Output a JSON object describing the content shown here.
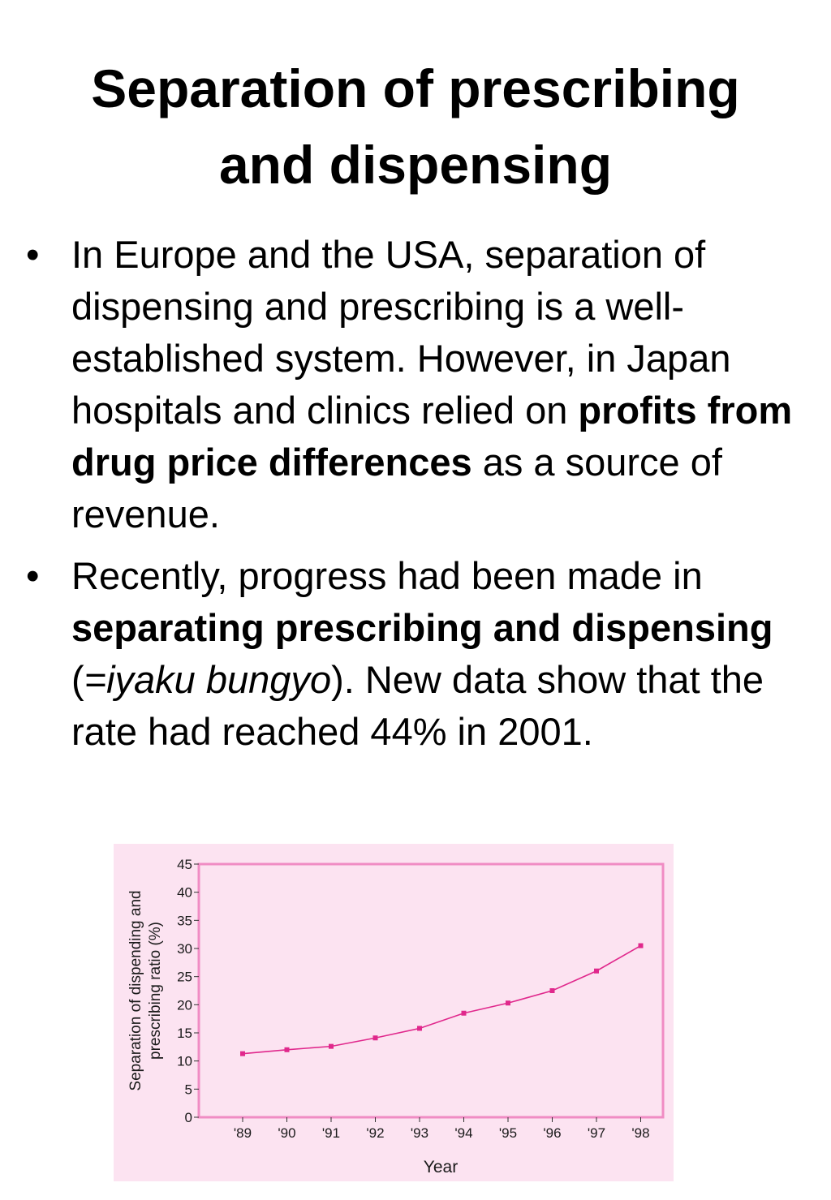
{
  "slide": {
    "title_line1": "Separation of prescribing",
    "title_line2": "and dispensing",
    "bullet_glyph": "•",
    "bullet1": {
      "t1": "In Europe and the USA, separation of dispensing and prescribing is a well-established system. However, in Japan hospitals and clinics relied on ",
      "b1": "profits from drug price differences",
      "t2": " as a source of revenue."
    },
    "bullet2": {
      "t1": "Recently, progress had been made in ",
      "b1": "separating prescribing and dispensing",
      "t2": " (",
      "i1": "=iyaku bungyo",
      "t3": ").  New data show that the rate had reached 44% in 2001."
    }
  },
  "chart_data": {
    "type": "line",
    "categories": [
      "'89",
      "'90",
      "'91",
      "'92",
      "'93",
      "'94",
      "'95",
      "'96",
      "'97",
      "'98"
    ],
    "series": [
      {
        "values": [
          11.3,
          12.0,
          12.6,
          14.1,
          15.8,
          18.5,
          20.3,
          22.5,
          26.0,
          30.5
        ]
      }
    ],
    "xlabel": "Year",
    "ylabel_line1": "Separation of dispending and",
    "ylabel_line2": "prescribing ratio (%)",
    "ylim": [
      0,
      45
    ],
    "yticks": [
      0,
      5,
      10,
      15,
      20,
      25,
      30,
      35,
      40,
      45
    ],
    "grid": false,
    "colors": {
      "line": "#e0288c",
      "marker": "#e0288c",
      "frame": "#f08cc4",
      "background": "#fce3f1"
    }
  }
}
